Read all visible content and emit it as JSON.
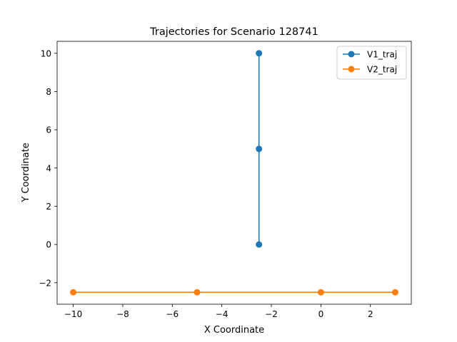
{
  "chart_data": {
    "type": "line",
    "title": "Trajectories for Scenario 128741",
    "xlabel": "X Coordinate",
    "ylabel": "Y Coordinate",
    "xlim": [
      -10.65,
      3.65
    ],
    "ylim": [
      -3.125,
      10.625
    ],
    "xticks": [
      -10,
      -8,
      -6,
      -4,
      -2,
      0,
      2
    ],
    "yticks": [
      -2,
      0,
      2,
      4,
      6,
      8,
      10
    ],
    "grid": false,
    "legend_position": "top-right",
    "series": [
      {
        "name": "V1_traj",
        "color": "#1f77b4",
        "marker": "circle",
        "points": [
          {
            "x": -2.5,
            "y": 0
          },
          {
            "x": -2.5,
            "y": 5
          },
          {
            "x": -2.5,
            "y": 10
          }
        ]
      },
      {
        "name": "V2_traj",
        "color": "#ff7f0e",
        "marker": "circle",
        "points": [
          {
            "x": -10,
            "y": -2.5
          },
          {
            "x": -5,
            "y": -2.5
          },
          {
            "x": 0,
            "y": -2.5
          },
          {
            "x": 3,
            "y": -2.5
          }
        ]
      }
    ]
  }
}
